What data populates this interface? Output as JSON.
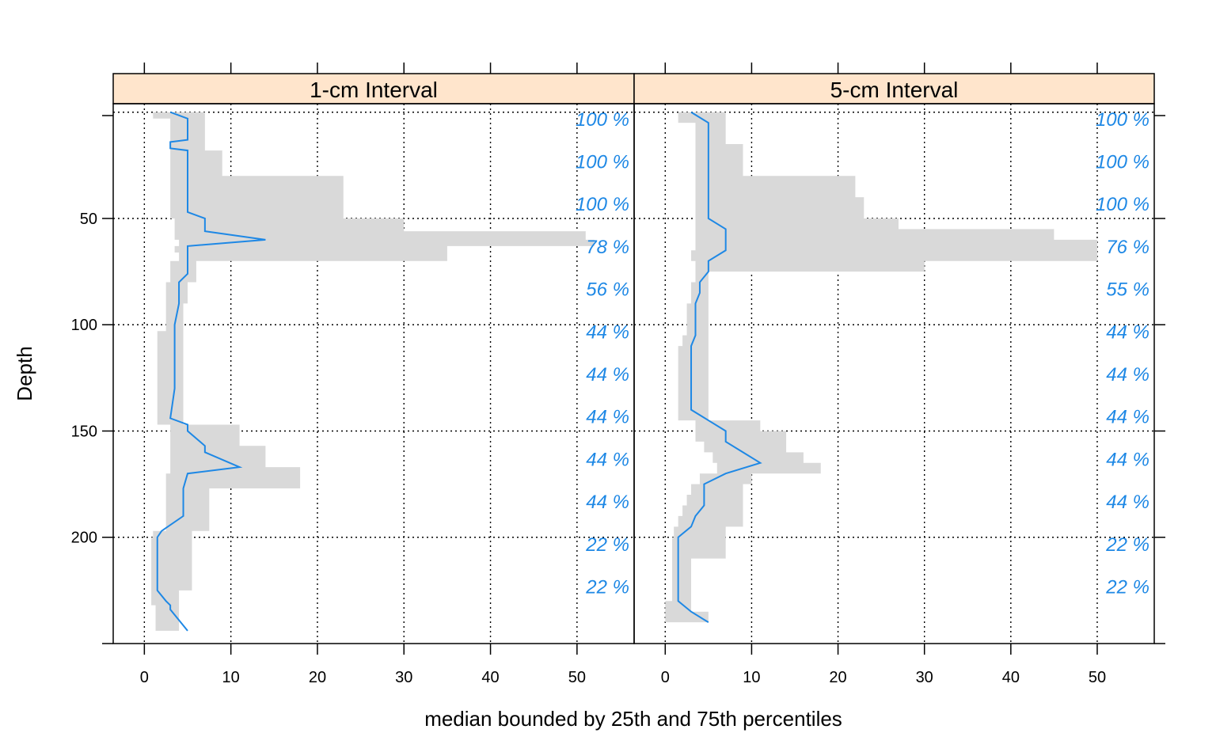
{
  "colors": {
    "band": "#d9d9d9",
    "median": "#1e88e5",
    "strip": "#ffe5cc",
    "pct": "#1e88e5"
  },
  "chart_data": {
    "type": "line",
    "xlabel": "median bounded by 25th and 75th percentiles",
    "ylabel": "Depth",
    "xlim": [
      -3.6,
      56.6
    ],
    "ylim": [
      250,
      -4
    ],
    "x_ticks": [
      0,
      10,
      20,
      30,
      40,
      50
    ],
    "y_ticks": [
      50,
      100,
      150,
      200
    ],
    "grid": true,
    "panels": [
      {
        "strip": "1-cm Interval",
        "depth": [
          0,
          3,
          13,
          14,
          17,
          18,
          27,
          30,
          47,
          50,
          56,
          60,
          63,
          66,
          70,
          76,
          80,
          87,
          90,
          100,
          103,
          130,
          144,
          147,
          150,
          157,
          160,
          167,
          170,
          177,
          180,
          190,
          197,
          200,
          225,
          230,
          232,
          234,
          244
        ],
        "median": [
          3,
          5,
          5,
          3,
          3,
          5,
          5,
          5,
          5,
          7,
          7,
          14,
          5,
          5,
          5,
          5,
          4,
          4,
          4,
          3.5,
          3.5,
          3.5,
          3,
          5,
          5,
          7,
          7,
          11,
          5,
          4.5,
          4.5,
          4.5,
          2,
          1.5,
          1.5,
          2.5,
          3,
          3,
          5
        ],
        "q25": [
          1,
          3,
          3,
          3,
          3,
          3,
          3,
          3,
          3,
          3.5,
          3.5,
          4,
          3.5,
          4,
          3,
          3,
          2.5,
          2.5,
          2.5,
          2.5,
          1.5,
          1.5,
          1.5,
          3,
          3,
          3,
          3,
          3,
          2.5,
          2.5,
          2.5,
          2.5,
          1,
          0.8,
          0.8,
          0.8,
          1.3,
          1.3,
          1.3
        ],
        "q75": [
          7,
          7,
          7,
          7,
          7,
          9,
          9,
          23,
          23,
          30,
          51,
          52,
          35,
          35,
          6,
          6,
          5,
          5,
          4.5,
          4.5,
          4.5,
          4.5,
          4.5,
          11,
          11,
          14,
          14,
          18,
          18,
          7.5,
          7.5,
          7.5,
          5.5,
          5.5,
          4,
          4,
          4,
          4,
          4
        ],
        "pct_labels": [
          "100 %",
          "100 %",
          "100 %",
          "78 %",
          "56 %",
          "44 %",
          "44 %",
          "44 %",
          "44 %",
          "44 %",
          "22 %",
          "22 %"
        ]
      },
      {
        "strip": "5-cm Interval",
        "depth": [
          0,
          5,
          15,
          20,
          25,
          30,
          40,
          45,
          50,
          55,
          60,
          65,
          70,
          75,
          80,
          85,
          90,
          100,
          105,
          110,
          140,
          145,
          150,
          155,
          160,
          165,
          170,
          175,
          180,
          185,
          190,
          195,
          200,
          210,
          230,
          235,
          240
        ],
        "median": [
          3,
          5,
          5,
          5,
          5,
          5,
          5,
          5,
          5,
          7,
          7,
          7,
          5,
          5,
          4,
          4,
          3.5,
          3.5,
          3.5,
          3,
          3,
          5,
          7,
          7,
          9,
          11,
          7,
          4.5,
          4.5,
          4.5,
          3.5,
          3,
          1.5,
          1.5,
          1.5,
          3,
          5
        ],
        "q25": [
          1.5,
          3.5,
          3.5,
          3.5,
          3.5,
          3.5,
          3.5,
          3.5,
          3.5,
          3.5,
          3.5,
          3,
          3.5,
          3.5,
          3,
          3,
          2.5,
          2.5,
          2,
          1.5,
          1.5,
          3.5,
          3.5,
          4.5,
          5.5,
          6,
          4,
          3,
          2.5,
          2,
          1.5,
          1,
          0.8,
          0.8,
          0,
          0,
          0
        ],
        "q75": [
          7,
          7,
          9,
          9,
          9,
          22,
          23,
          23,
          27,
          45,
          50,
          50,
          30,
          5,
          5,
          5,
          5,
          5,
          5,
          5,
          5,
          11,
          14,
          14,
          16,
          18,
          10,
          9,
          9,
          9,
          9,
          7,
          7,
          3,
          3,
          5,
          5
        ],
        "pct_labels": [
          "100 %",
          "100 %",
          "100 %",
          "76 %",
          "55 %",
          "44 %",
          "44 %",
          "44 %",
          "44 %",
          "44 %",
          "22 %",
          "22 %"
        ]
      }
    ]
  }
}
